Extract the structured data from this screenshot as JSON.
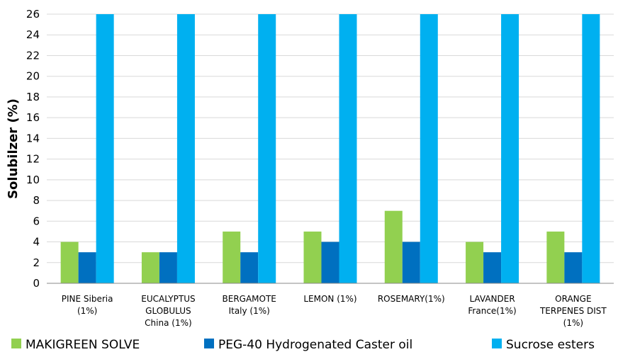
{
  "chart_data": {
    "type": "bar",
    "categories": [
      [
        "PINE Siberia",
        "(1%)"
      ],
      [
        "EUCALYPTUS",
        "GLOBULUS",
        "China (1%)"
      ],
      [
        "BERGAMOTE",
        "Italy (1%)"
      ],
      [
        "LEMON (1%)"
      ],
      [
        "ROSEMARY(1%)"
      ],
      [
        "LAVANDER",
        "France(1%)"
      ],
      [
        "ORANGE",
        "TERPENES DIST",
        "(1%)"
      ]
    ],
    "series": [
      {
        "name": "MAKIGREEN SOLVE",
        "color": "#92d050",
        "values": [
          4,
          3,
          5,
          5,
          7,
          4,
          5
        ]
      },
      {
        "name": "PEG-40 Hydrogenated Caster oil",
        "color": "#0070c0",
        "values": [
          3,
          3,
          3,
          4,
          4,
          3,
          3
        ]
      },
      {
        "name": "Sucrose esters",
        "color": "#00b0f0",
        "values": [
          26,
          26,
          26,
          26,
          26,
          26,
          26
        ]
      }
    ],
    "ylabel": "Solubilzer (%)",
    "xlabel": "",
    "ylim": [
      0,
      26
    ],
    "yticks": [
      0,
      2,
      4,
      6,
      8,
      10,
      12,
      14,
      16,
      18,
      20,
      22,
      24,
      26
    ],
    "grid": true,
    "legend_position": "bottom"
  }
}
